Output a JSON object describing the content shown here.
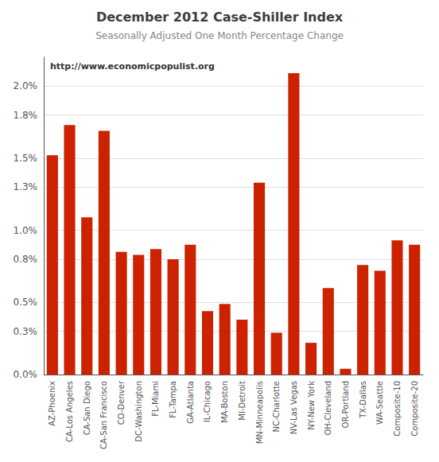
{
  "chart_data": {
    "type": "bar",
    "title": "December 2012 Case-Shiller Index",
    "subtitle": "Seasonally Adjusted One Month Percentage Change",
    "annotations": [
      "http://www.economicpopulist.org"
    ],
    "categories": [
      "AZ-Phoenix",
      "CA-Los Angeles",
      "CA-San Diego",
      "CA-San Francisco",
      "CO-Denver",
      "DC-Washington",
      "FL-Miami",
      "FL-Tampa",
      "GA-Atlanta",
      "IL-Chicago",
      "MA-Boston",
      "MI-Detroit",
      "MN-Minneapolis",
      "NC-Charlotte",
      "NV-Las Vegas",
      "NY-New York",
      "OH-Cleveland",
      "OR-Portland",
      "TX-Dallas",
      "WA-Seattle",
      "Composite-10",
      "Composite-20"
    ],
    "values": [
      1.52,
      1.73,
      1.09,
      1.69,
      0.85,
      0.83,
      0.87,
      0.8,
      0.9,
      0.44,
      0.49,
      0.38,
      1.33,
      0.29,
      2.09,
      0.22,
      0.6,
      0.04,
      0.76,
      0.72,
      0.93,
      0.9
    ],
    "color": "#cc2200",
    "ylim": [
      0,
      2.2
    ],
    "yticks": [
      {
        "value": 0.0,
        "label": "0.0%"
      },
      {
        "value": 0.3,
        "label": "0.3%"
      },
      {
        "value": 0.5,
        "label": "0.5%"
      },
      {
        "value": 0.8,
        "label": "0.8%"
      },
      {
        "value": 1.0,
        "label": "1.0%"
      },
      {
        "value": 1.3,
        "label": "1.3%"
      },
      {
        "value": 1.5,
        "label": "1.5%"
      },
      {
        "value": 1.8,
        "label": "1.8%"
      },
      {
        "value": 2.0,
        "label": "2.0%"
      }
    ],
    "grid": true
  }
}
